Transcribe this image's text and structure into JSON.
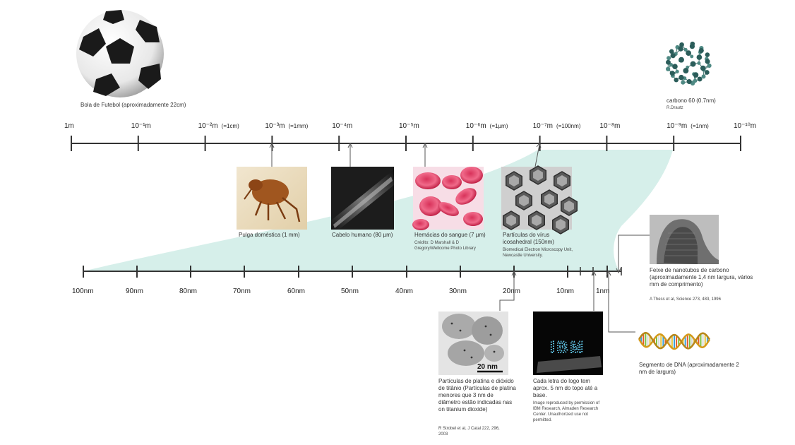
{
  "top_scale": {
    "ticks": [
      {
        "label": "1m"
      },
      {
        "label": "10⁻¹m"
      },
      {
        "label": "10⁻²m",
        "note": "(=1cm)"
      },
      {
        "label": "10⁻³m",
        "note": "(=1mm)"
      },
      {
        "label": "10⁻⁴m"
      },
      {
        "label": "10⁻⁵m"
      },
      {
        "label": "10⁻⁶m",
        "note": "(=1µm)"
      },
      {
        "label": "10⁻⁷m",
        "note": "(=100nm)"
      },
      {
        "label": "10⁻⁸m"
      },
      {
        "label": "10⁻⁹m",
        "note": "(=1nm)"
      },
      {
        "label": "10⁻¹⁰m"
      }
    ]
  },
  "bottom_scale": {
    "ticks": [
      "100nm",
      "90nm",
      "80nm",
      "70nm",
      "60nm",
      "50nm",
      "40nm",
      "30nm",
      "20nm",
      "10nm",
      "1nm"
    ]
  },
  "items": {
    "football": {
      "caption": "Bola de Futebol (aproximadamente 22cm)"
    },
    "carbon60": {
      "caption": "carbono 60 (0.7nm)",
      "credit": "R.Drautz"
    },
    "flea": {
      "caption": "Pulga doméstica (1 mm)"
    },
    "hair": {
      "caption": "Cabelo humano (80 µm)"
    },
    "blood": {
      "caption": "Hemácias do sangue (7 µm)",
      "credit": "Crédito: D Marshall & D Gregory/Wellcome Photo Library"
    },
    "virus": {
      "caption": "Partículas do vírus icosahedral (150nm)",
      "credit": "Biomedical Electron Microscopy Unit, Newcastle University."
    },
    "nanotubes": {
      "caption": "Feixe de nanotubos de carbono (aproximadamente 1,4 nm largura, vários mm de comprimento)",
      "credit": "A Thess et al, Science 273, 483, 1996"
    },
    "platinum": {
      "caption": "Partículas de platina e dióxido de titânio (Partículas de platina menores que 3 nm de diâmetro estão indicadas nas on titanium dioxide)",
      "credit": "R Strobel et al, J Catal 222, 296, 2003",
      "scale_label": "20 nm"
    },
    "ibm": {
      "caption": "Cada letra do logo tem aprox. 5 nm do topo até a base.",
      "credit": "Image reproduced by permission of IBM Research, Almaden Research Center. Unauthorized use not permitted.",
      "logo_text": "IBM"
    },
    "dna": {
      "caption": "Segmento de DNA (aproximadamente 2 nm de largura)"
    }
  },
  "colors": {
    "axis": "#333333",
    "zoom_band": "#d6efea",
    "text": "#333333"
  }
}
